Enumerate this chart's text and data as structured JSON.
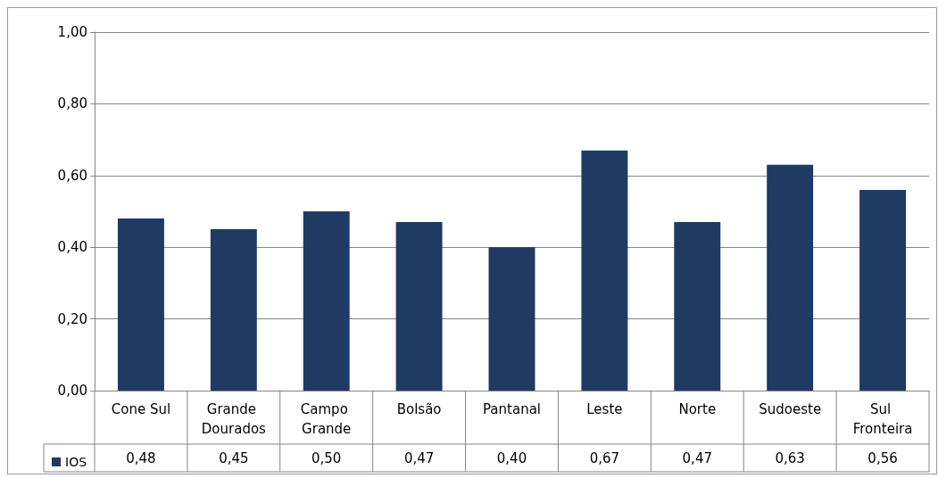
{
  "chart_data": {
    "type": "bar",
    "categories": [
      "Cone Sul",
      "Grande Dourados",
      "Campo Grande",
      "Bolsão",
      "Pantanal",
      "Leste",
      "Norte",
      "Sudoeste",
      "Sul Fronteira"
    ],
    "series": [
      {
        "name": "IOS",
        "color": "#1f3a63",
        "values": [
          0.48,
          0.45,
          0.5,
          0.47,
          0.4,
          0.67,
          0.47,
          0.63,
          0.56
        ],
        "value_labels": [
          "0,48",
          "0,45",
          "0,50",
          "0,47",
          "0,40",
          "0,67",
          "0,47",
          "0,63",
          "0,56"
        ]
      }
    ],
    "ylim": [
      0,
      1
    ],
    "yticks": [
      {
        "value": 0,
        "label": "0,00"
      },
      {
        "value": 0.2,
        "label": "0,20"
      },
      {
        "value": 0.4,
        "label": "0,40"
      },
      {
        "value": 0.6,
        "label": "0,60"
      },
      {
        "value": 0.8,
        "label": "0,80"
      },
      {
        "value": 1,
        "label": "1,00"
      }
    ],
    "grid": "y",
    "legend": "bottom left"
  }
}
